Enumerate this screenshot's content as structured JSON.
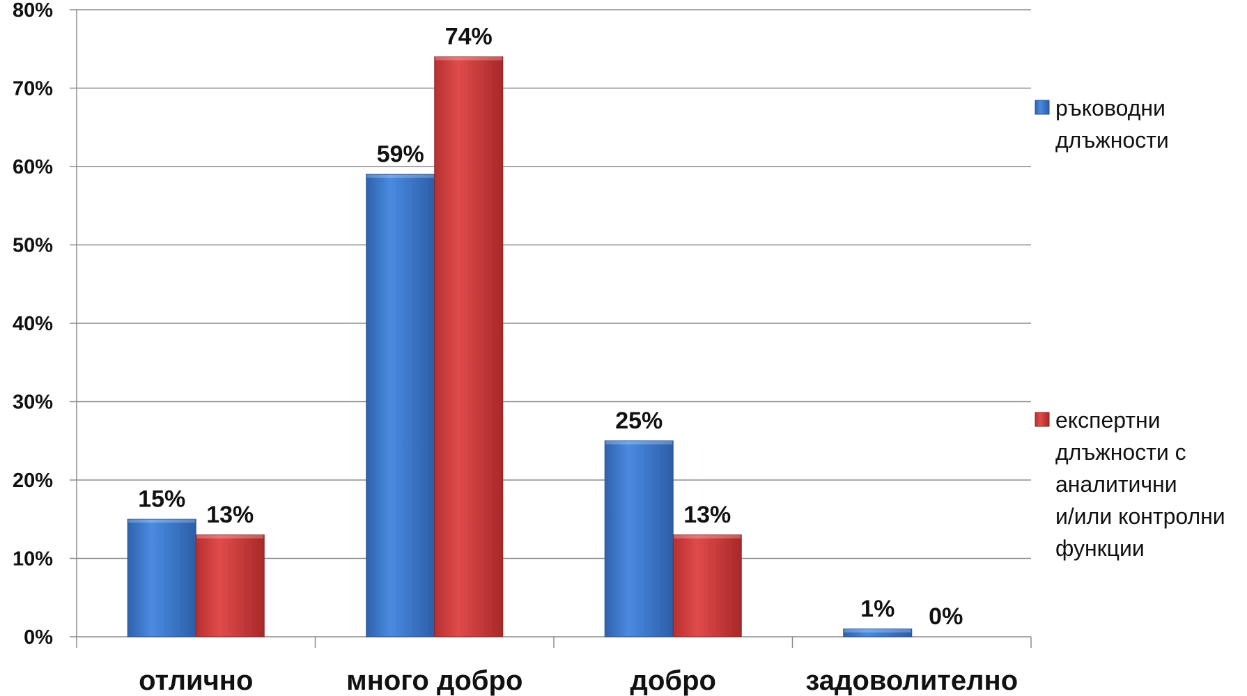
{
  "chart_data": {
    "type": "bar",
    "categories": [
      "отлично",
      "много добро",
      "добро",
      "задоволително"
    ],
    "series": [
      {
        "name": "ръководни длъжности",
        "values": [
          15,
          59,
          25,
          1
        ],
        "labels": [
          "15%",
          "59%",
          "25%",
          "1%"
        ],
        "color": "#3d7fd6"
      },
      {
        "name": "експертни длъжности с аналитични и/или контролни функции",
        "values": [
          13,
          74,
          13,
          0
        ],
        "labels": [
          "13%",
          "74%",
          "13%",
          "0%"
        ],
        "color": "#d94545"
      }
    ],
    "ylim": [
      0,
      80
    ],
    "yticks": [
      "0%",
      "10%",
      "20%",
      "30%",
      "40%",
      "50%",
      "60%",
      "70%",
      "80%"
    ],
    "grid": true,
    "legend_position": "right",
    "legend": [
      {
        "lines": [
          "ръководни",
          "длъжности"
        ]
      },
      {
        "lines": [
          "експертни",
          "длъжности с",
          "аналитични",
          "и/или контролни",
          "функции"
        ]
      }
    ]
  }
}
